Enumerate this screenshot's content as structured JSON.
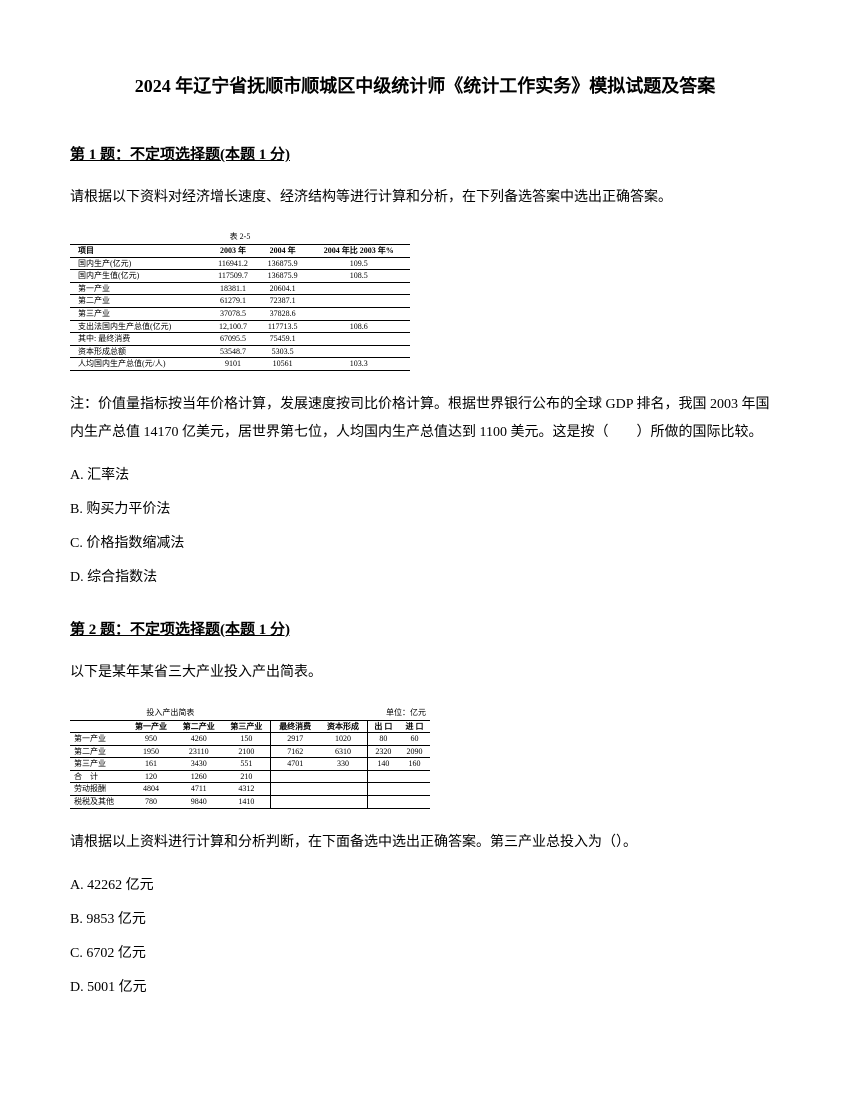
{
  "title": "2024 年辽宁省抚顺市顺城区中级统计师《统计工作实务》模拟试题及答案",
  "q1": {
    "header": "第 1 题：不定项选择题(本题 1 分)",
    "body": "请根据以下资料对经济增长速度、经济结构等进行计算和分析，在下列备选答案中选出正确答案。",
    "table_caption": "表 2-5",
    "headers": [
      "项目",
      "2003 年",
      "2004 年",
      "2004 年比 2003 年%"
    ],
    "rows": [
      [
        "国内生产(亿元)",
        "116941.2",
        "136875.9",
        "109.5"
      ],
      [
        "国内产生值(亿元)",
        "117509.7",
        "136875.9",
        "108.5"
      ],
      [
        "第一产业",
        "18381.1",
        "20604.1",
        ""
      ],
      [
        "第二产业",
        "61279.1",
        "72387.1",
        ""
      ],
      [
        "第三产业",
        "37078.5",
        "37828.6",
        ""
      ],
      [
        "支出法国内生产总值(亿元)",
        "12,100.7",
        "117713.5",
        "108.6"
      ],
      [
        "其中: 最终消费",
        "67095.5",
        "75459.1",
        ""
      ],
      [
        "资本形成总额",
        "53548.7",
        "5303.5",
        ""
      ],
      [
        "人均国内生产总值(元/人)",
        "9101",
        "10561",
        "103.3"
      ]
    ],
    "note": "注：价值量指标按当年价格计算，发展速度按司比价格计算。根据世界银行公布的全球 GDP 排名，我国 2003 年国内生产总值 14170 亿美元，居世界第七位，人均国内生产总值达到 1100 美元。这是按（　　）所做的国际比较。",
    "options": {
      "A": "A. 汇率法",
      "B": "B. 购买力平价法",
      "C": "C. 价格指数缩减法",
      "D": "D. 综合指数法"
    }
  },
  "q2": {
    "header": "第 2 题：不定项选择题(本题 1 分)",
    "body": "以下是某年某省三大产业投入产出简表。",
    "table_caption": "投入产出简表",
    "unit": "单位：亿元",
    "headers_group1": [
      "",
      "第一产业",
      "第二产业",
      "第三产业",
      "最终消费",
      "资本形成",
      "出 口",
      "进 口"
    ],
    "rows": [
      [
        "第一产业",
        "950",
        "4260",
        "150",
        "2917",
        "1020",
        "80",
        "60"
      ],
      [
        "第二产业",
        "1950",
        "23110",
        "2100",
        "7162",
        "6310",
        "2320",
        "2090"
      ],
      [
        "第三产业",
        "161",
        "3430",
        "551",
        "4701",
        "330",
        "140",
        "160"
      ],
      [
        "合　计",
        "120",
        "1260",
        "210",
        "",
        "",
        "",
        ""
      ],
      [
        "劳动报酬",
        "4804",
        "4711",
        "4312",
        "",
        "",
        "",
        ""
      ],
      [
        "税税及其他",
        "780",
        "9840",
        "1410",
        "",
        "",
        "",
        ""
      ]
    ],
    "question": "请根据以上资料进行计算和分析判断，在下面备选中选出正确答案。第三产业总投入为（）。",
    "options": {
      "A": "A. 42262 亿元",
      "B": "B. 9853 亿元",
      "C": "C. 6702 亿元",
      "D": "D. 5001 亿元"
    }
  }
}
